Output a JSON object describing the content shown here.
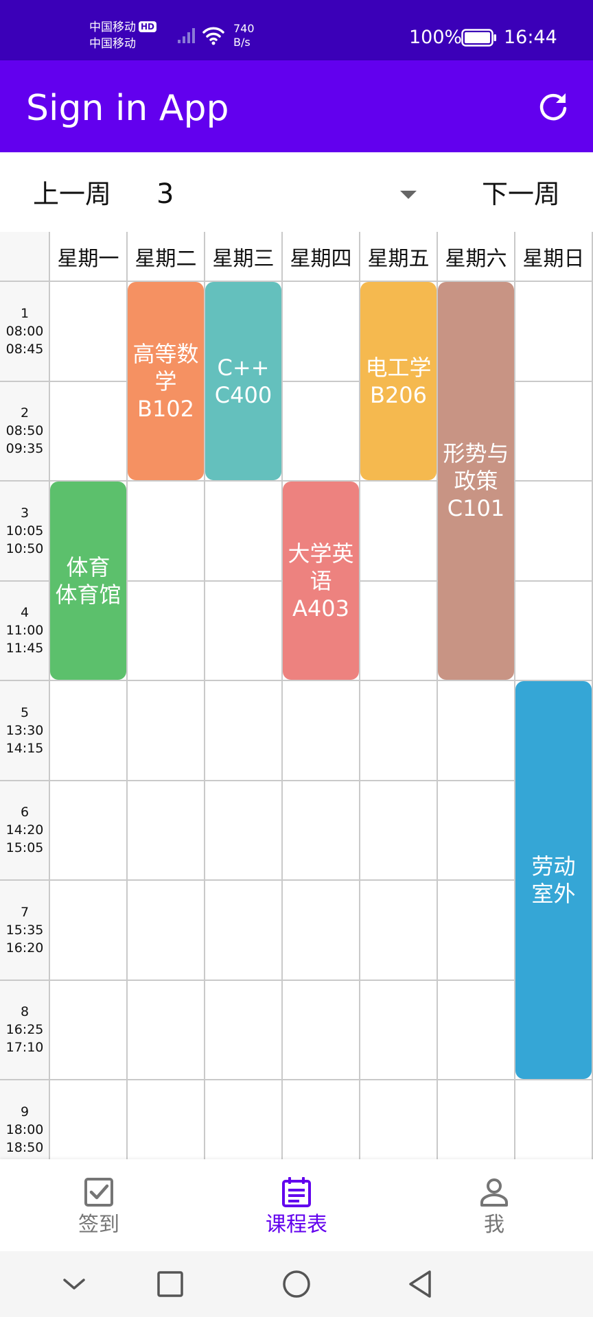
{
  "status_bar": {
    "carrier_1": "中国移动",
    "hd_badge": "HD",
    "carrier_2": "中国移动",
    "net_speed_value": "740",
    "net_speed_unit": "B/s",
    "battery": "100%",
    "time": "16:44"
  },
  "app_bar": {
    "title": "Sign in App",
    "refresh_icon": "refresh-icon"
  },
  "week_selector": {
    "prev_label": "上一周",
    "current_week": "3",
    "next_label": "下一周"
  },
  "timetable": {
    "days": [
      "星期一",
      "星期二",
      "星期三",
      "星期四",
      "星期五",
      "星期六",
      "星期日"
    ],
    "periods": [
      {
        "num": "1",
        "start": "08:00",
        "end": "08:45"
      },
      {
        "num": "2",
        "start": "08:50",
        "end": "09:35"
      },
      {
        "num": "3",
        "start": "10:05",
        "end": "10:50"
      },
      {
        "num": "4",
        "start": "11:00",
        "end": "11:45"
      },
      {
        "num": "5",
        "start": "13:30",
        "end": "14:15"
      },
      {
        "num": "6",
        "start": "14:20",
        "end": "15:05"
      },
      {
        "num": "7",
        "start": "15:35",
        "end": "16:20"
      },
      {
        "num": "8",
        "start": "16:25",
        "end": "17:10"
      },
      {
        "num": "9",
        "start": "18:00",
        "end": "18:50"
      }
    ],
    "courses": [
      {
        "day": 1,
        "start_period": 1,
        "periods": 2,
        "name": "高等数学",
        "room": "B102",
        "color": "#f59162"
      },
      {
        "day": 2,
        "start_period": 1,
        "periods": 2,
        "name": "C++",
        "room": "C400",
        "color": "#64c0bd"
      },
      {
        "day": 4,
        "start_period": 1,
        "periods": 2,
        "name": "电工学",
        "room": "B206",
        "color": "#f5b94f"
      },
      {
        "day": 5,
        "start_period": 1,
        "periods": 4,
        "name": "形势与政策",
        "room": "C101",
        "color": "#c89484"
      },
      {
        "day": 0,
        "start_period": 3,
        "periods": 2,
        "name": "体育",
        "room": "体育馆",
        "color": "#5cc06c"
      },
      {
        "day": 3,
        "start_period": 3,
        "periods": 2,
        "name": "大学英语",
        "room": "A403",
        "color": "#ed827f"
      },
      {
        "day": 6,
        "start_period": 5,
        "periods": 4,
        "name": "劳动",
        "room": "室外",
        "color": "#35a6d6"
      }
    ]
  },
  "bottom_nav": {
    "items": [
      {
        "label": "签到",
        "icon": "checkbox-icon",
        "active": false
      },
      {
        "label": "课程表",
        "icon": "calendar-list-icon",
        "active": true
      },
      {
        "label": "我",
        "icon": "person-icon",
        "active": false
      }
    ]
  },
  "colors": {
    "status_bar": "#3b00b8",
    "primary": "#6200ee",
    "nav_inactive": "#757575",
    "grid": "#c9c9c9"
  }
}
